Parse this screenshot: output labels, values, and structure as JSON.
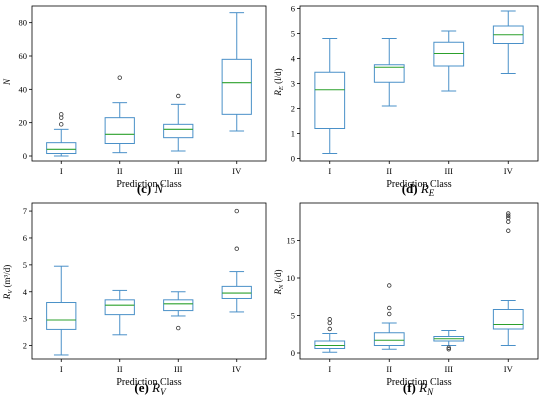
{
  "figure": {
    "colors": {
      "box": "#4a90c8",
      "median": "#2ca02c",
      "axis": "#000000",
      "outlier": "#333333"
    },
    "panels": [
      {
        "caption_letter": "(c)",
        "caption_var": "N",
        "caption_sub": "",
        "ylabel_main": "N",
        "ylabel_sub": "",
        "ylabel_unit": "",
        "xlabel": "Prediction Class",
        "yticks": [
          "0",
          "20",
          "40",
          "60",
          "80"
        ]
      },
      {
        "caption_letter": "(d)",
        "caption_var": "R",
        "caption_sub": "E",
        "ylabel_main": "R",
        "ylabel_sub": "E",
        "ylabel_unit": " (l/d)",
        "xlabel": "Prediction Class",
        "yticks": [
          "0",
          "1",
          "2",
          "3",
          "4",
          "5",
          "6"
        ]
      },
      {
        "caption_letter": "(e)",
        "caption_var": "R",
        "caption_sub": "V",
        "ylabel_main": "R",
        "ylabel_sub": "V",
        "ylabel_unit": " (m³/d)",
        "xlabel": "Prediction Class",
        "yticks": [
          "2",
          "3",
          "4",
          "5",
          "6",
          "7"
        ]
      },
      {
        "caption_letter": "(f)",
        "caption_var": "R",
        "caption_sub": "N",
        "ylabel_main": "R",
        "ylabel_sub": "N",
        "ylabel_unit": " (/d)",
        "xlabel": "Prediction Class",
        "yticks": [
          "0",
          "5",
          "10",
          "15"
        ]
      }
    ]
  },
  "chart_data": [
    {
      "type": "box",
      "title": "(c) N",
      "xlabel": "Prediction Class",
      "ylabel": "N",
      "categories": [
        "I",
        "II",
        "III",
        "IV"
      ],
      "ylim": [
        -3,
        90
      ],
      "yticks": [
        0,
        20,
        40,
        60,
        80
      ],
      "boxes": [
        {
          "whisker_low": 0,
          "q1": 1.5,
          "median": 4,
          "q3": 8,
          "whisker_high": 16,
          "outliers": [
            19,
            23,
            25
          ]
        },
        {
          "whisker_low": 2,
          "q1": 7.5,
          "median": 13,
          "q3": 23,
          "whisker_high": 32,
          "outliers": [
            47
          ]
        },
        {
          "whisker_low": 3,
          "q1": 11,
          "median": 16,
          "q3": 19,
          "whisker_high": 31,
          "outliers": [
            36
          ]
        },
        {
          "whisker_low": 15,
          "q1": 25,
          "median": 44,
          "q3": 58,
          "whisker_high": 86,
          "outliers": []
        }
      ]
    },
    {
      "type": "box",
      "title": "(d) RE",
      "xlabel": "Prediction Class",
      "ylabel": "RE (l/d)",
      "categories": [
        "I",
        "II",
        "III",
        "IV"
      ],
      "ylim": [
        -0.1,
        6.1
      ],
      "yticks": [
        0,
        1,
        2,
        3,
        4,
        5,
        6
      ],
      "boxes": [
        {
          "whisker_low": 0.2,
          "q1": 1.2,
          "median": 2.75,
          "q3": 3.45,
          "whisker_high": 4.8,
          "outliers": []
        },
        {
          "whisker_low": 2.1,
          "q1": 3.05,
          "median": 3.65,
          "q3": 3.75,
          "whisker_high": 4.8,
          "outliers": []
        },
        {
          "whisker_low": 2.7,
          "q1": 3.7,
          "median": 4.2,
          "q3": 4.65,
          "whisker_high": 5.1,
          "outliers": []
        },
        {
          "whisker_low": 3.4,
          "q1": 4.6,
          "median": 4.95,
          "q3": 5.3,
          "whisker_high": 5.9,
          "outliers": []
        }
      ]
    },
    {
      "type": "box",
      "title": "(e) RV",
      "xlabel": "Prediction Class",
      "ylabel": "RV (m³/d)",
      "categories": [
        "I",
        "II",
        "III",
        "IV"
      ],
      "ylim": [
        1.5,
        7.3
      ],
      "yticks": [
        2,
        3,
        4,
        5,
        6,
        7
      ],
      "boxes": [
        {
          "whisker_low": 1.65,
          "q1": 2.6,
          "median": 2.95,
          "q3": 3.6,
          "whisker_high": 4.95,
          "outliers": []
        },
        {
          "whisker_low": 2.4,
          "q1": 3.15,
          "median": 3.5,
          "q3": 3.7,
          "whisker_high": 4.05,
          "outliers": []
        },
        {
          "whisker_low": 3.1,
          "q1": 3.3,
          "median": 3.55,
          "q3": 3.7,
          "whisker_high": 4.0,
          "outliers": [
            2.65
          ]
        },
        {
          "whisker_low": 3.25,
          "q1": 3.75,
          "median": 3.95,
          "q3": 4.2,
          "whisker_high": 4.75,
          "outliers": [
            5.6,
            7.0
          ]
        }
      ]
    },
    {
      "type": "box",
      "title": "(f) RN",
      "xlabel": "Prediction Class",
      "ylabel": "RN (/d)",
      "categories": [
        "I",
        "II",
        "III",
        "IV"
      ],
      "ylim": [
        -0.8,
        20
      ],
      "yticks": [
        0,
        5,
        10,
        15
      ],
      "boxes": [
        {
          "whisker_low": 0.1,
          "q1": 0.6,
          "median": 1.0,
          "q3": 1.6,
          "whisker_high": 2.6,
          "outliers": [
            3.2,
            4.0,
            4.5
          ]
        },
        {
          "whisker_low": 0.5,
          "q1": 1.0,
          "median": 1.7,
          "q3": 2.7,
          "whisker_high": 4.0,
          "outliers": [
            5.2,
            6.0,
            9.0
          ]
        },
        {
          "whisker_low": 1.0,
          "q1": 1.6,
          "median": 1.9,
          "q3": 2.2,
          "whisker_high": 3.0,
          "outliers": [
            0.5,
            0.7
          ]
        },
        {
          "whisker_low": 1.0,
          "q1": 3.2,
          "median": 3.8,
          "q3": 5.8,
          "whisker_high": 7.0,
          "outliers": [
            16.3,
            17.5,
            18.0,
            18.3,
            18.6
          ]
        }
      ]
    }
  ]
}
